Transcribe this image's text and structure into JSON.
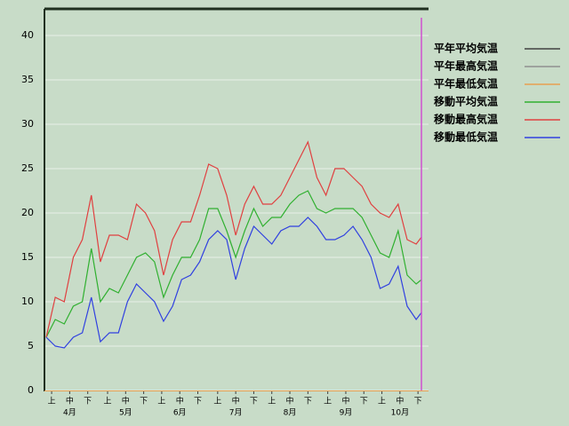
{
  "chart_data": {
    "type": "line",
    "x": [
      0,
      5,
      10,
      15,
      20,
      25,
      30,
      35,
      40,
      45,
      50,
      55,
      60,
      65,
      70,
      75,
      80,
      85,
      90,
      95,
      100,
      105,
      110,
      115,
      120,
      125,
      130,
      135,
      140,
      145,
      150,
      155,
      160,
      165,
      170,
      175,
      180,
      185,
      190,
      195,
      200,
      205,
      208
    ],
    "xlim": [
      0,
      211
    ],
    "xticks": [
      {
        "value": 3,
        "label": "上"
      },
      {
        "value": 13,
        "label": "中"
      },
      {
        "value": 23,
        "label": "下"
      },
      {
        "value": 34,
        "label": "上"
      },
      {
        "value": 44,
        "label": "中"
      },
      {
        "value": 54,
        "label": "下"
      },
      {
        "value": 64,
        "label": "上"
      },
      {
        "value": 74,
        "label": "中"
      },
      {
        "value": 84,
        "label": "下"
      },
      {
        "value": 95,
        "label": "上"
      },
      {
        "value": 105,
        "label": "中"
      },
      {
        "value": 115,
        "label": "下"
      },
      {
        "value": 125,
        "label": "上"
      },
      {
        "value": 135,
        "label": "中"
      },
      {
        "value": 145,
        "label": "下"
      },
      {
        "value": 156,
        "label": "上"
      },
      {
        "value": 166,
        "label": "中"
      },
      {
        "value": 176,
        "label": "下"
      },
      {
        "value": 186,
        "label": "上"
      },
      {
        "value": 196,
        "label": "中"
      },
      {
        "value": 206,
        "label": "下"
      }
    ],
    "month_labels": [
      {
        "value": 13,
        "label": "4月"
      },
      {
        "value": 44,
        "label": "5月"
      },
      {
        "value": 74,
        "label": "6月"
      },
      {
        "value": 105,
        "label": "7月"
      },
      {
        "value": 135,
        "label": "8月"
      },
      {
        "value": 166,
        "label": "9月"
      },
      {
        "value": 196,
        "label": "10月"
      }
    ],
    "ylim": [
      0,
      43
    ],
    "yticks": [
      0,
      5,
      10,
      15,
      20,
      25,
      30,
      35,
      40
    ],
    "series": [
      {
        "name": "平年平均気温",
        "color": "#404040",
        "values": [
          null,
          null,
          null,
          null,
          null,
          null,
          null,
          null,
          null,
          null,
          null,
          null,
          null,
          null,
          null,
          null,
          null,
          null,
          null,
          null,
          null,
          null,
          null,
          null,
          null,
          null,
          null,
          null,
          null,
          null,
          null,
          null,
          null,
          null,
          null,
          null,
          null,
          null,
          null,
          null,
          null,
          null,
          null
        ]
      },
      {
        "name": "平年最高気温",
        "color": "#909090",
        "values": [
          null,
          null,
          null,
          null,
          null,
          null,
          null,
          null,
          null,
          null,
          null,
          null,
          null,
          null,
          null,
          null,
          null,
          null,
          null,
          null,
          null,
          null,
          null,
          null,
          null,
          null,
          null,
          null,
          null,
          null,
          null,
          null,
          null,
          null,
          null,
          null,
          null,
          null,
          null,
          null,
          null,
          null,
          null
        ]
      },
      {
        "name": "平年最低気温",
        "color": "#e8a050",
        "values": [
          null,
          null,
          null,
          null,
          null,
          null,
          null,
          null,
          null,
          null,
          null,
          null,
          null,
          null,
          null,
          null,
          null,
          null,
          null,
          null,
          null,
          null,
          null,
          null,
          null,
          null,
          null,
          null,
          null,
          null,
          null,
          null,
          null,
          null,
          null,
          null,
          null,
          null,
          null,
          null,
          null,
          null,
          null
        ]
      },
      {
        "name": "移動平均気温",
        "color": "#30b030",
        "values": [
          6,
          8,
          7.5,
          9.5,
          10,
          16,
          10,
          11.5,
          11,
          13,
          15,
          15.5,
          14.5,
          10.5,
          13,
          15,
          15,
          17,
          20.5,
          20.5,
          18,
          15,
          18,
          20.5,
          18.5,
          19.5,
          19.5,
          21,
          22,
          22.5,
          20.5,
          20,
          20.5,
          20.5,
          20.5,
          19.5,
          17.5,
          15.5,
          15,
          18,
          13,
          12,
          12.5
        ]
      },
      {
        "name": "移動最高気温",
        "color": "#e04040",
        "values": [
          6,
          10.5,
          10,
          15,
          17,
          22,
          14.5,
          17.5,
          17.5,
          17,
          21,
          20,
          18,
          13,
          17,
          19,
          19,
          22,
          25.5,
          25,
          22,
          17.5,
          21,
          23,
          21,
          21,
          22,
          24,
          26,
          28,
          24,
          22,
          25,
          25,
          24,
          23,
          21,
          20,
          19.5,
          21,
          17,
          16.5,
          17.3
        ]
      },
      {
        "name": "移動最低気温",
        "color": "#3040e0",
        "values": [
          6,
          5,
          4.8,
          6,
          6.5,
          10.5,
          5.5,
          6.5,
          6.5,
          10,
          12,
          11,
          10,
          7.8,
          9.5,
          12.5,
          13,
          14.5,
          17,
          18,
          17,
          12.5,
          16,
          18.5,
          17.5,
          16.5,
          18,
          18.5,
          18.5,
          19.5,
          18.5,
          17,
          17,
          17.5,
          18.5,
          17,
          15,
          11.5,
          12,
          14,
          9.5,
          8,
          8.8
        ]
      }
    ]
  }
}
